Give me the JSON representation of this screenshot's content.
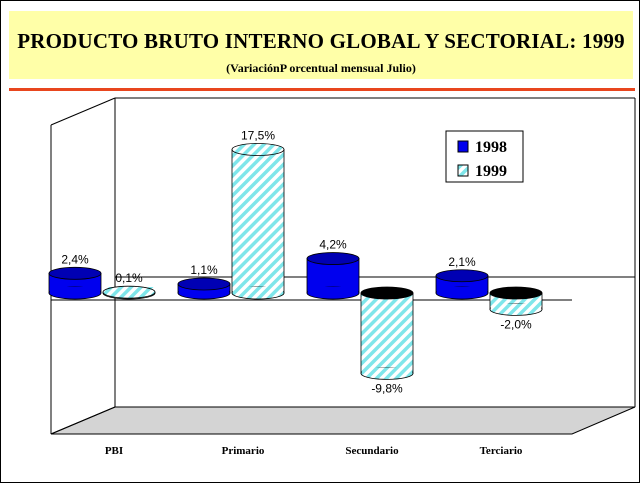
{
  "header": {
    "title": "PRODUCTO BRUTO INTERNO GLOBAL Y SECTORIAL: 1999",
    "subtitle": "(VariaciónP orcentual mensual Julio)"
  },
  "chart_data": {
    "type": "bar",
    "categories": [
      "PBI",
      "Primario",
      "Secundario",
      "Terciario"
    ],
    "series": [
      {
        "name": "1998",
        "values": [
          2.4,
          1.1,
          4.2,
          2.1
        ],
        "labels": [
          "2,4%",
          "1,1%",
          "4,2%",
          "2,1%"
        ],
        "color": "#0000ee"
      },
      {
        "name": "1999",
        "values": [
          0.1,
          17.5,
          -9.8,
          -2.0
        ],
        "labels": [
          "0,1%",
          "17,5%",
          "-9,8%",
          "-2,0%"
        ],
        "color": "#7fe6ea"
      }
    ],
    "title": "PRODUCTO BRUTO INTERNO GLOBAL Y SECTORIAL: 1999",
    "subtitle": "(VariaciónP orcentual mensual Julio)",
    "xlabel": "",
    "ylabel": "",
    "legend_position": "top-right",
    "grid": false,
    "style": "3d-cylinder",
    "colors": {
      "title_bg": "#ffffa8",
      "rule": "#e8461e",
      "series_1998": "#0000ee",
      "series_1999": "#7fe6ea",
      "floor": "#d4d4d4"
    }
  }
}
